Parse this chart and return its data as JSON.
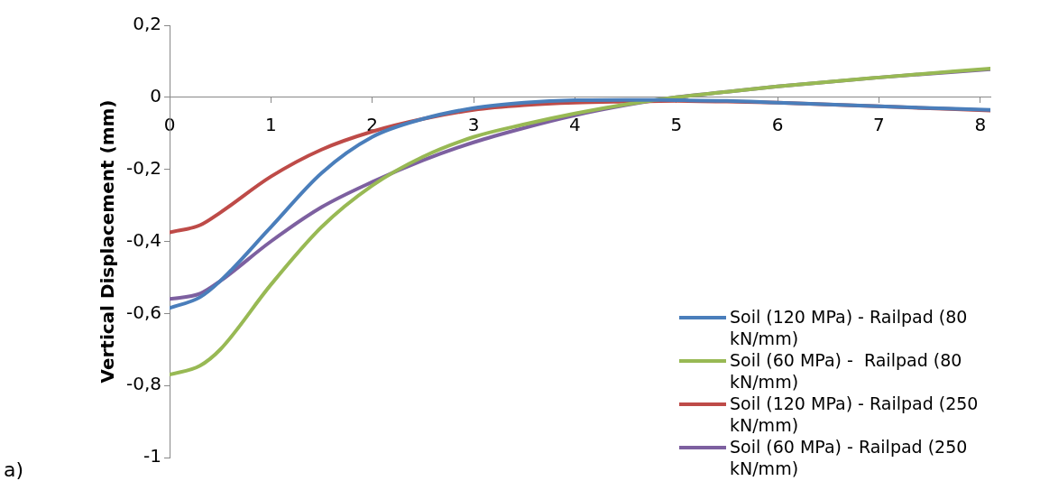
{
  "chart_data": {
    "type": "line",
    "ylabel": "Vertical Displacement (mm)",
    "annotations": [
      "a)"
    ],
    "xlim": [
      0,
      8.1
    ],
    "xticks": [
      0,
      1,
      2,
      3,
      4,
      5,
      6,
      7,
      8
    ],
    "ylim": [
      -1,
      0.2
    ],
    "yticks": [
      {
        "value": 0.2,
        "label": "0,2"
      },
      0,
      {
        "value": -0.2,
        "label": "-0,2"
      },
      {
        "value": -0.4,
        "label": "-0,4"
      },
      {
        "value": -0.6,
        "label": "-0,6"
      },
      {
        "value": -0.8,
        "label": "-0,8"
      },
      -1
    ],
    "grid": false,
    "legend": "bottom right",
    "marker": "none",
    "line_style": "solid",
    "x": [
      0,
      0.3,
      0.5,
      1,
      1.5,
      2,
      2.5,
      3,
      3.5,
      4,
      4.5,
      5,
      5.5,
      6,
      7,
      8.1
    ],
    "series": [
      {
        "name": "Soil (120 MPa) - Railpad (80 kN/mm)",
        "color": "#4a7ebb",
        "values": [
          -0.585,
          -0.555,
          -0.51,
          -0.36,
          -0.21,
          -0.11,
          -0.06,
          -0.03,
          -0.015,
          -0.008,
          -0.007,
          -0.008,
          -0.01,
          -0.015,
          -0.025,
          -0.035
        ]
      },
      {
        "name": "Soil (60 MPa) -  Railpad (80 kN/mm)",
        "color": "#98b954",
        "values": [
          -0.77,
          -0.745,
          -0.7,
          -0.52,
          -0.36,
          -0.245,
          -0.165,
          -0.11,
          -0.075,
          -0.045,
          -0.02,
          0,
          0.015,
          0.03,
          0.055,
          0.08
        ]
      },
      {
        "name": "Soil (120 MPa) - Railpad (250 kN/mm)",
        "color": "#be4b48",
        "values": [
          -0.375,
          -0.355,
          -0.32,
          -0.22,
          -0.145,
          -0.095,
          -0.06,
          -0.035,
          -0.022,
          -0.015,
          -0.012,
          -0.01,
          -0.012,
          -0.015,
          -0.025,
          -0.037
        ]
      },
      {
        "name": "Soil (60 MPa) - Railpad (250 kN/mm)",
        "color": "#7d60a0",
        "values": [
          -0.56,
          -0.545,
          -0.51,
          -0.4,
          -0.305,
          -0.235,
          -0.175,
          -0.125,
          -0.085,
          -0.05,
          -0.022,
          0,
          0.015,
          0.03,
          0.055,
          0.078
        ]
      }
    ]
  }
}
